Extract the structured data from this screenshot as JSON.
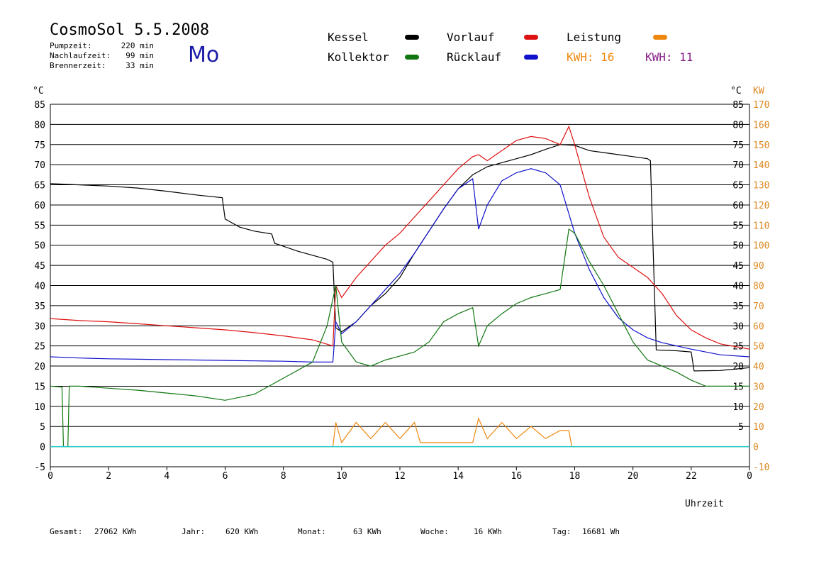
{
  "header": {
    "title": "CosmoSol 5.5.2008",
    "day": "Mo",
    "stats": [
      {
        "label": "Pumpzeit:",
        "value": "220 min"
      },
      {
        "label": "Nachlaufzeit:",
        "value": "99 min"
      },
      {
        "label": "Brennerzeit:",
        "value": "33 min"
      }
    ]
  },
  "legend": {
    "items": [
      {
        "label": "Kessel",
        "color": "#000000"
      },
      {
        "label": "Kollektor",
        "color": "#117711"
      },
      {
        "label": "Vorlauf",
        "color": "#dd1111"
      },
      {
        "label": "Rücklauf",
        "color": "#1111cc"
      },
      {
        "label": "Leistung",
        "color": "#ee8811"
      }
    ],
    "kwh1": "KWH: 16",
    "kwh1_color": "#ee8811",
    "kwh2": "KWH: 11",
    "kwh2_color": "#882288"
  },
  "footer": {
    "items": [
      {
        "label": "Gesamt:",
        "value": "27062 KWh"
      },
      {
        "label": "Jahr:",
        "value": "620 KWh"
      },
      {
        "label": "Monat:",
        "value": "63 KWh"
      },
      {
        "label": "Woche:",
        "value": "16 KWh"
      },
      {
        "label": "Tag:",
        "value": "16681 Wh"
      }
    ]
  },
  "chart_data": {
    "type": "line",
    "xlabel": "Uhrzeit",
    "ylabel_left": "°C",
    "ylabel_right_temp": "°C",
    "ylabel_right_power": "KW",
    "xlim": [
      0,
      24
    ],
    "ylim": [
      -5,
      85
    ],
    "x_ticks": [
      "0",
      "2",
      "4",
      "6",
      "8",
      "10",
      "12",
      "14",
      "16",
      "18",
      "20",
      "22",
      "0"
    ],
    "y_ticks_left": [
      "-5",
      "0",
      "5",
      "10",
      "15",
      "20",
      "25",
      "30",
      "35",
      "40",
      "45",
      "50",
      "55",
      "60",
      "65",
      "70",
      "75",
      "80",
      "85"
    ],
    "y_ticks_right_temp": [
      "5",
      "10",
      "15",
      "20",
      "25",
      "30",
      "35",
      "40",
      "45",
      "50",
      "55",
      "60",
      "65",
      "70",
      "75",
      "80",
      "85"
    ],
    "y_ticks_right_power": [
      "-10",
      "0",
      "10",
      "20",
      "30",
      "40",
      "50",
      "60",
      "70",
      "80",
      "90",
      "100",
      "110",
      "120",
      "130",
      "140",
      "150",
      "160",
      "170"
    ],
    "series": [
      {
        "name": "Kessel",
        "color": "#000000",
        "points": [
          [
            0,
            65.3
          ],
          [
            1,
            65
          ],
          [
            2,
            64.7
          ],
          [
            3,
            64.2
          ],
          [
            4,
            63.4
          ],
          [
            5,
            62.5
          ],
          [
            5.9,
            61.8
          ],
          [
            6,
            56.5
          ],
          [
            6.5,
            54.5
          ],
          [
            7,
            53.5
          ],
          [
            7.6,
            52.8
          ],
          [
            7.7,
            50.5
          ],
          [
            8.5,
            48.5
          ],
          [
            9.5,
            46.5
          ],
          [
            9.7,
            45.8
          ],
          [
            9.8,
            29.5
          ],
          [
            10,
            28.5
          ],
          [
            10.5,
            31
          ],
          [
            11,
            35
          ],
          [
            11.5,
            38
          ],
          [
            12,
            42
          ],
          [
            12.5,
            48
          ],
          [
            13,
            53.5
          ],
          [
            13.5,
            59
          ],
          [
            14,
            64
          ],
          [
            14.5,
            67.5
          ],
          [
            15,
            69.5
          ],
          [
            15.5,
            70.5
          ],
          [
            16,
            71.5
          ],
          [
            16.5,
            72.5
          ],
          [
            17,
            73.8
          ],
          [
            17.5,
            75
          ],
          [
            18,
            74.8
          ],
          [
            18.5,
            73.5
          ],
          [
            19,
            73
          ],
          [
            19.5,
            72.5
          ],
          [
            20,
            72
          ],
          [
            20.5,
            71.5
          ],
          [
            20.6,
            71
          ],
          [
            20.8,
            24
          ],
          [
            21.5,
            23.8
          ],
          [
            22,
            23.5
          ],
          [
            22.1,
            18.8
          ],
          [
            23,
            18.9
          ],
          [
            24,
            19.6
          ]
        ]
      },
      {
        "name": "Vorlauf",
        "color": "#dd1111",
        "points": [
          [
            0,
            31.8
          ],
          [
            1,
            31.3
          ],
          [
            2,
            31
          ],
          [
            3,
            30.5
          ],
          [
            4,
            30
          ],
          [
            5,
            29.5
          ],
          [
            6,
            29
          ],
          [
            7,
            28.3
          ],
          [
            8,
            27.5
          ],
          [
            9,
            26.5
          ],
          [
            9.7,
            25
          ],
          [
            9.8,
            40
          ],
          [
            10,
            37
          ],
          [
            10.5,
            42
          ],
          [
            11,
            46
          ],
          [
            11.5,
            50
          ],
          [
            12,
            53
          ],
          [
            12.5,
            57
          ],
          [
            13,
            61
          ],
          [
            13.5,
            65
          ],
          [
            14,
            69
          ],
          [
            14.5,
            72
          ],
          [
            14.7,
            72.5
          ],
          [
            15,
            71
          ],
          [
            15.5,
            73.5
          ],
          [
            16,
            76
          ],
          [
            16.5,
            77
          ],
          [
            17,
            76.5
          ],
          [
            17.5,
            75
          ],
          [
            17.8,
            79.5
          ],
          [
            18,
            75
          ],
          [
            18.5,
            62
          ],
          [
            19,
            52
          ],
          [
            19.5,
            47
          ],
          [
            20,
            44.5
          ],
          [
            20.5,
            42
          ],
          [
            21,
            38
          ],
          [
            21.5,
            32.5
          ],
          [
            22,
            29
          ],
          [
            22.5,
            27
          ],
          [
            23,
            25.5
          ],
          [
            24,
            24.2
          ]
        ]
      },
      {
        "name": "Rücklauf",
        "color": "#1111cc",
        "points": [
          [
            0,
            22.3
          ],
          [
            1,
            22
          ],
          [
            2,
            21.8
          ],
          [
            3,
            21.7
          ],
          [
            4,
            21.6
          ],
          [
            5,
            21.5
          ],
          [
            6,
            21.4
          ],
          [
            7,
            21.3
          ],
          [
            8,
            21.2
          ],
          [
            9,
            21
          ],
          [
            9.7,
            21
          ],
          [
            9.8,
            31
          ],
          [
            10,
            28
          ],
          [
            10.5,
            31
          ],
          [
            11,
            35
          ],
          [
            11.5,
            39
          ],
          [
            12,
            43
          ],
          [
            12.5,
            48
          ],
          [
            13,
            53.5
          ],
          [
            13.5,
            59
          ],
          [
            14,
            64
          ],
          [
            14.5,
            66.5
          ],
          [
            14.7,
            54
          ],
          [
            15,
            60
          ],
          [
            15.5,
            66
          ],
          [
            16,
            68
          ],
          [
            16.5,
            69
          ],
          [
            17,
            68
          ],
          [
            17.5,
            65
          ],
          [
            18,
            53
          ],
          [
            18.5,
            44
          ],
          [
            19,
            37
          ],
          [
            19.5,
            32
          ],
          [
            20,
            29
          ],
          [
            20.5,
            27
          ],
          [
            21,
            25.8
          ],
          [
            22,
            24.2
          ],
          [
            23,
            22.8
          ],
          [
            24,
            22.3
          ]
        ]
      },
      {
        "name": "Kollektor",
        "color": "#117711",
        "points": [
          [
            0,
            15
          ],
          [
            0.4,
            14.8
          ],
          [
            0.45,
            0
          ],
          [
            0.6,
            0
          ],
          [
            0.65,
            15
          ],
          [
            1,
            15
          ],
          [
            2,
            14.5
          ],
          [
            3,
            14
          ],
          [
            4,
            13.3
          ],
          [
            5,
            12.6
          ],
          [
            6,
            11.5
          ],
          [
            7,
            13
          ],
          [
            8,
            17
          ],
          [
            9,
            21
          ],
          [
            9.5,
            30
          ],
          [
            9.8,
            40
          ],
          [
            10,
            26
          ],
          [
            10.5,
            21
          ],
          [
            11,
            20
          ],
          [
            11.5,
            21.5
          ],
          [
            12,
            22.5
          ],
          [
            12.5,
            23.5
          ],
          [
            13,
            26
          ],
          [
            13.5,
            31
          ],
          [
            14,
            33
          ],
          [
            14.5,
            34.5
          ],
          [
            14.7,
            25
          ],
          [
            15,
            30
          ],
          [
            15.5,
            33
          ],
          [
            16,
            35.5
          ],
          [
            16.5,
            37
          ],
          [
            17,
            38
          ],
          [
            17.5,
            39
          ],
          [
            17.8,
            54
          ],
          [
            18,
            53
          ],
          [
            18.5,
            46
          ],
          [
            19,
            40
          ],
          [
            19.5,
            33
          ],
          [
            20,
            26
          ],
          [
            20.5,
            21.5
          ],
          [
            21,
            20
          ],
          [
            21.5,
            18.5
          ],
          [
            22,
            16.5
          ],
          [
            22.5,
            15
          ],
          [
            23,
            15
          ],
          [
            24,
            15
          ]
        ]
      },
      {
        "name": "Leistung",
        "color": "#ee8811",
        "points": [
          [
            0,
            0
          ],
          [
            9.7,
            0
          ],
          [
            9.8,
            6
          ],
          [
            10,
            1
          ],
          [
            10.5,
            6
          ],
          [
            11,
            2
          ],
          [
            11.5,
            6
          ],
          [
            12,
            2
          ],
          [
            12.5,
            6
          ],
          [
            12.7,
            1
          ],
          [
            14.5,
            1
          ],
          [
            14.7,
            7
          ],
          [
            15,
            2
          ],
          [
            15.5,
            6
          ],
          [
            16,
            2
          ],
          [
            16.5,
            5
          ],
          [
            17,
            2
          ],
          [
            17.5,
            4
          ],
          [
            17.8,
            4
          ],
          [
            17.9,
            0
          ],
          [
            24,
            0
          ]
        ]
      }
    ]
  }
}
